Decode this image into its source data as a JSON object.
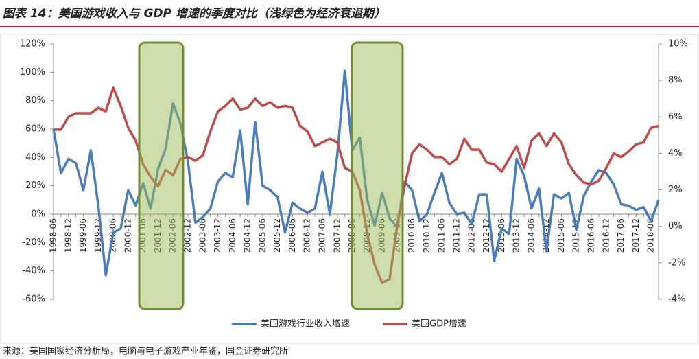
{
  "chart_data": {
    "type": "line",
    "title": "图表 14：美国游戏收入与 GDP 增速的季度对比（浅绿色为经济衰退期）",
    "source": "来源：美国国家经济分析局，电脑与电子游戏产业年鉴，国金证券研究所",
    "categories": [
      "1998-06",
      null,
      "1998-12",
      null,
      "1999-06",
      null,
      "1999-12",
      null,
      "2000-06",
      null,
      "2000-12",
      null,
      "2001-06",
      null,
      "2001-12",
      null,
      "2002-06",
      null,
      "2002-12",
      null,
      "2003-06",
      null,
      "2003-12",
      null,
      "2004-06",
      null,
      "2004-12",
      null,
      "2005-06",
      null,
      "2005-12",
      null,
      "2006-06",
      null,
      "2006-12",
      null,
      "2007-06",
      null,
      "2007-12",
      null,
      "2008-06",
      null,
      "2008-12",
      null,
      "2009-06",
      null,
      "2009-12",
      null,
      "2010-06",
      null,
      "2010-12",
      null,
      "2011-06",
      null,
      "2011-12",
      null,
      "2012-06",
      null,
      "2012-12",
      null,
      "2013-06",
      null,
      "2013-12",
      null,
      "2014-06",
      null,
      "2014-12",
      null,
      "2015-06",
      null,
      "2015-12",
      null,
      "2016-06",
      null,
      "2016-12",
      null,
      "2017-06",
      null,
      "2017-12",
      null,
      "2018-06",
      null
    ],
    "series": [
      {
        "name": "美国游戏行业收入增速",
        "color": "#4a7ebb",
        "axis": "y",
        "values": [
          60,
          29,
          39,
          36,
          17,
          45,
          6,
          -43,
          -13,
          -10,
          17,
          6,
          22,
          4,
          32,
          46,
          78,
          64,
          37,
          -6,
          -2,
          4,
          23,
          29,
          26,
          59,
          7,
          65,
          20,
          17,
          12,
          -13,
          8,
          4,
          1,
          4,
          30,
          0,
          42,
          101,
          45,
          54,
          10,
          -8,
          15,
          -3,
          -9,
          23,
          17,
          -5,
          0,
          15,
          29,
          8,
          0,
          1,
          -7,
          14,
          14,
          -33,
          -10,
          -14,
          39,
          27,
          4,
          18,
          -26,
          14,
          11,
          15,
          -11,
          13,
          23,
          31,
          29,
          21,
          7,
          6,
          3,
          5,
          -5,
          10
        ]
      },
      {
        "name": "美国GDP增速",
        "color": "#be4b48",
        "axis": "y2",
        "values": [
          5.3,
          5.3,
          6.0,
          6.2,
          6.2,
          6.2,
          6.5,
          6.3,
          7.6,
          6.6,
          5.4,
          4.7,
          3.4,
          2.7,
          2.2,
          3.1,
          2.8,
          3.7,
          3.8,
          3.6,
          3.9,
          5.2,
          6.3,
          6.6,
          7.0,
          6.4,
          6.5,
          7.0,
          6.6,
          6.8,
          6.5,
          6.6,
          6.5,
          5.5,
          5.2,
          4.4,
          4.6,
          4.8,
          4.6,
          3.2,
          3.0,
          2.0,
          -0.4,
          -2.1,
          -3.1,
          -2.9,
          0,
          2.2,
          4.0,
          4.5,
          4.2,
          3.8,
          3.8,
          3.4,
          3.7,
          4.8,
          4.2,
          4.2,
          3.5,
          3.4,
          3.0,
          3.7,
          4.4,
          3.2,
          4.7,
          5.1,
          4.4,
          5.1,
          4.6,
          3.4,
          2.8,
          2.4,
          2.3,
          2.5,
          3.2,
          4.0,
          3.8,
          4.1,
          4.5,
          4.6,
          5.4,
          5.5
        ]
      }
    ],
    "ylim": [
      -60,
      120
    ],
    "yticks": [
      {
        "value": -60,
        "label": "-60%"
      },
      {
        "value": -40,
        "label": "-40%"
      },
      {
        "value": -20,
        "label": "-20%"
      },
      {
        "value": 0,
        "label": "0%"
      },
      {
        "value": 20,
        "label": "20%"
      },
      {
        "value": 40,
        "label": "40%"
      },
      {
        "value": 60,
        "label": "60%"
      },
      {
        "value": 80,
        "label": "80%"
      },
      {
        "value": 100,
        "label": "100%"
      },
      {
        "value": 120,
        "label": "120%"
      }
    ],
    "y2lim": [
      -4,
      10
    ],
    "y2ticks": [
      {
        "value": -4,
        "label": "-4%"
      },
      {
        "value": -2,
        "label": "-2%"
      },
      {
        "value": 0,
        "label": "0%"
      },
      {
        "value": 2,
        "label": "2%"
      },
      {
        "value": 4,
        "label": "4%"
      },
      {
        "value": 6,
        "label": "6%"
      },
      {
        "value": 8,
        "label": "8%"
      },
      {
        "value": 10,
        "label": "10%"
      }
    ],
    "legend": "bottom",
    "grid": false
  }
}
